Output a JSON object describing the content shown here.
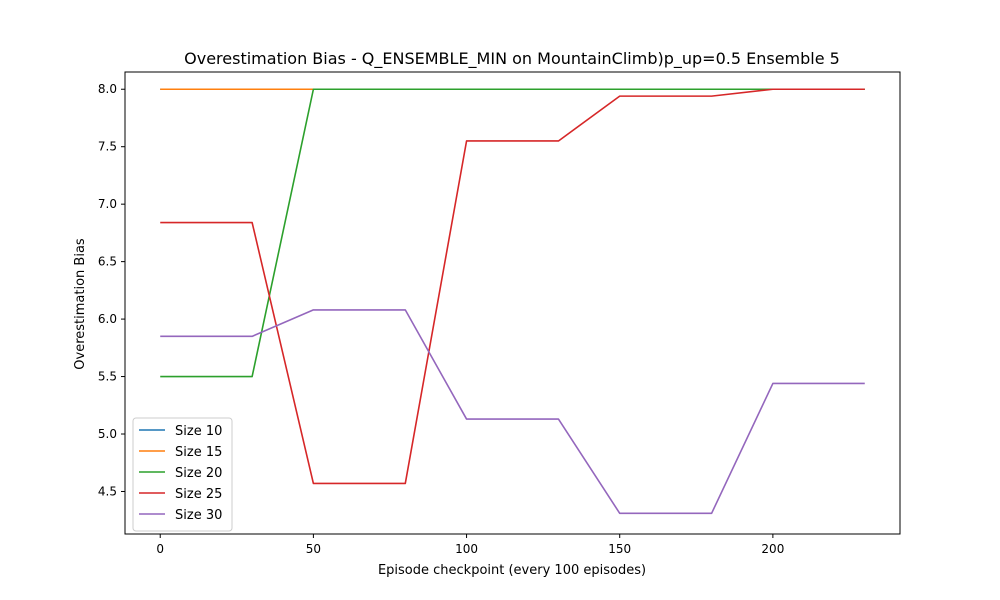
{
  "chart_data": {
    "type": "line",
    "title": "Overestimation Bias - Q_ENSEMBLE_MIN on MountainClimb)p_up=0.5 Ensemble 5",
    "xlabel": "Episode checkpoint (every 100 episodes)",
    "ylabel": "Overestimation Bias",
    "xlim": [
      -11.5,
      241.5
    ],
    "ylim": [
      4.13,
      8.15
    ],
    "xticks": [
      0,
      50,
      100,
      150,
      200
    ],
    "yticks": [
      4.5,
      5.0,
      5.5,
      6.0,
      6.5,
      7.0,
      7.5,
      8.0
    ],
    "ytick_labels": [
      "4.5",
      "5.0",
      "5.5",
      "6.0",
      "6.5",
      "7.0",
      "7.5",
      "8.0"
    ],
    "grid": false,
    "legend_position": "lower-left",
    "x": [
      0,
      30,
      50,
      80,
      100,
      130,
      150,
      180,
      200,
      230
    ],
    "series": [
      {
        "name": "Size 10",
        "color": "#1f77b4",
        "values": [
          8.0,
          8.0,
          8.0,
          8.0,
          8.0,
          8.0,
          8.0,
          8.0,
          8.0,
          8.0
        ]
      },
      {
        "name": "Size 15",
        "color": "#ff7f0e",
        "values": [
          8.0,
          8.0,
          8.0,
          8.0,
          8.0,
          8.0,
          8.0,
          8.0,
          8.0,
          8.0
        ]
      },
      {
        "name": "Size 20",
        "color": "#2ca02c",
        "values": [
          5.5,
          5.5,
          8.0,
          8.0,
          8.0,
          8.0,
          8.0,
          8.0,
          8.0,
          8.0
        ]
      },
      {
        "name": "Size 25",
        "color": "#d62728",
        "values": [
          6.84,
          6.84,
          4.57,
          4.57,
          7.55,
          7.55,
          7.94,
          7.94,
          8.0,
          8.0
        ]
      },
      {
        "name": "Size 30",
        "color": "#9467bd",
        "values": [
          5.85,
          5.85,
          6.08,
          6.08,
          5.13,
          5.13,
          4.31,
          4.31,
          5.44,
          5.44
        ]
      }
    ]
  }
}
